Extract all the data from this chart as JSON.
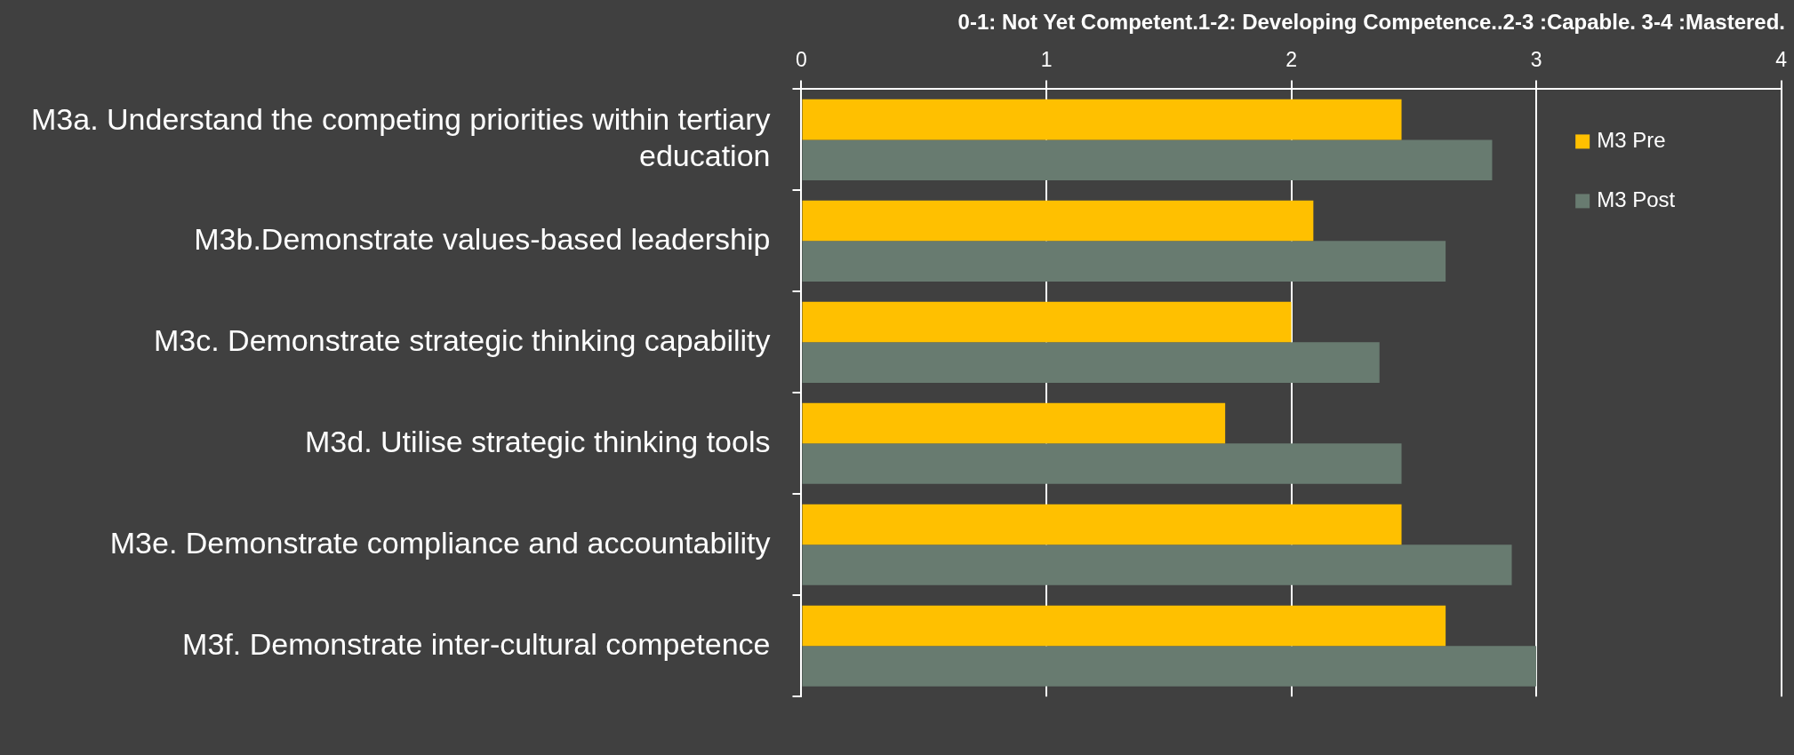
{
  "chart_data": {
    "type": "bar",
    "orientation": "horizontal",
    "title": "0-1: Not Yet Competent.1-2: Developing Competence..2-3 :Capable. 3-4 :Mastered.",
    "categories": [
      "M3a. Understand the competing priorities within tertiary education",
      "M3b.Demonstrate values-based leadership",
      "M3c. Demonstrate strategic thinking capability",
      "M3d. Utilise strategic thinking tools",
      "M3e. Demonstrate compliance and accountability",
      "M3f. Demonstrate inter-cultural competence"
    ],
    "series": [
      {
        "name": "M3 Pre",
        "color": "#ffc000",
        "values": [
          2.45,
          2.09,
          2.0,
          1.73,
          2.45,
          2.63
        ]
      },
      {
        "name": "M3 Post",
        "color": "#687b70",
        "values": [
          2.82,
          2.63,
          2.36,
          2.45,
          2.9,
          3.0
        ]
      }
    ],
    "xlim": [
      0,
      4
    ],
    "xticks": [
      0,
      1,
      2,
      3,
      4
    ],
    "grid": "x",
    "legend": "top right"
  }
}
